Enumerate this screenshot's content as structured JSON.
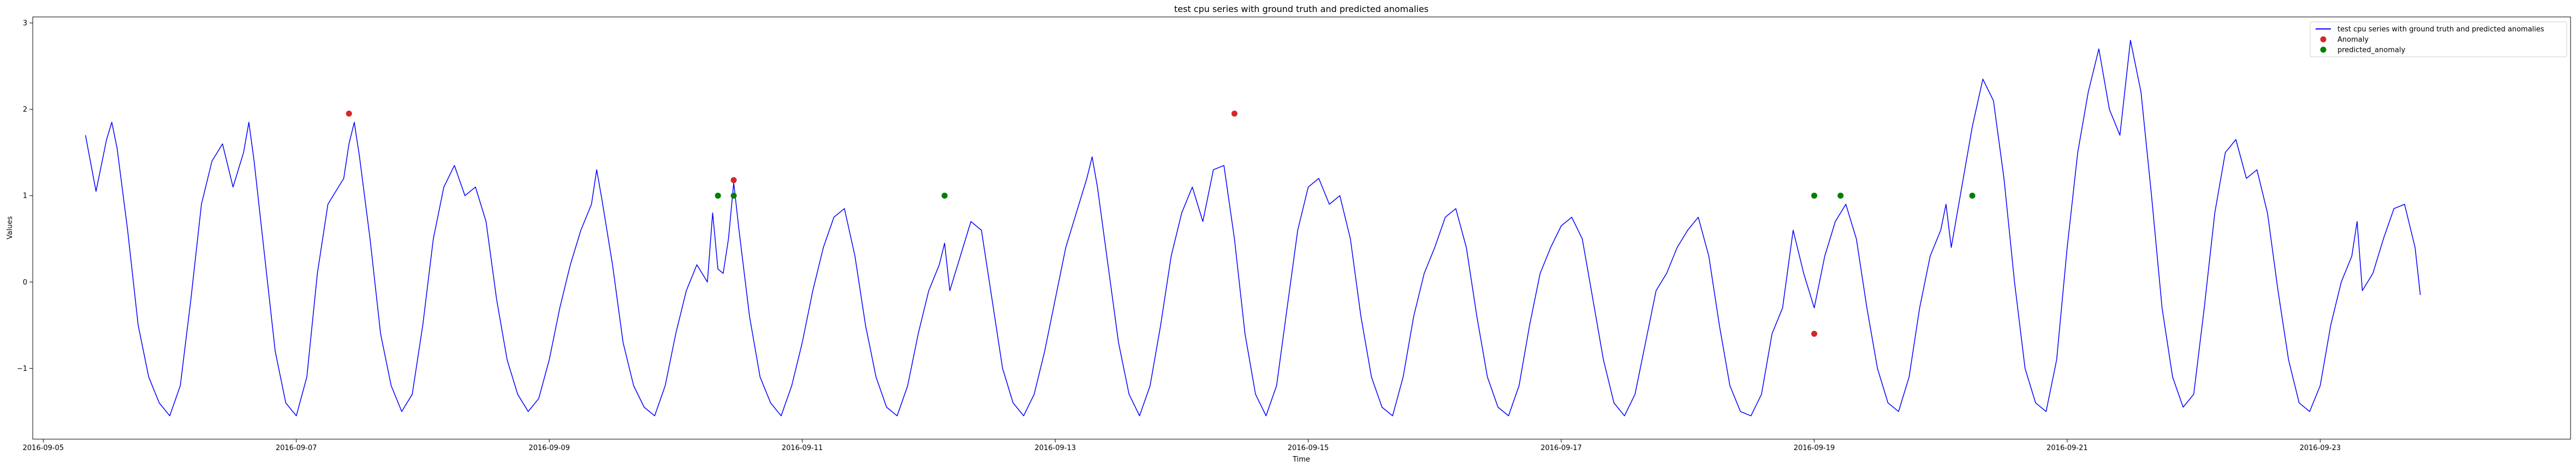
{
  "chart_data": {
    "type": "line",
    "title": "test cpu series with ground truth and predicted anomalies",
    "xlabel": "Time",
    "ylabel": "Values",
    "x_type": "date",
    "xlim": [
      "2016-09-04T22:00",
      "2016-09-24T23:30"
    ],
    "ylim": [
      -1.82,
      3.07
    ],
    "x_ticks": [
      "2016-09-05",
      "2016-09-07",
      "2016-09-09",
      "2016-09-11",
      "2016-09-13",
      "2016-09-15",
      "2016-09-17",
      "2016-09-19",
      "2016-09-21",
      "2016-09-23"
    ],
    "y_ticks": [
      -1,
      0,
      1,
      2,
      3
    ],
    "y_tick_labels": [
      "−1",
      "0",
      "1",
      "2",
      "3"
    ],
    "grid": false,
    "legend_position": "top-right",
    "colors": {
      "series": "#0000ff",
      "anomaly": "#d62728",
      "predicted": "#008000"
    },
    "series": [
      {
        "name": "test cpu series with ground truth and predicted anomalies",
        "marker": "line",
        "color": "#0000ff",
        "points": [
          [
            "2016-09-05T08:00",
            1.7
          ],
          [
            "2016-09-05T10:00",
            1.05
          ],
          [
            "2016-09-05T12:00",
            1.65
          ],
          [
            "2016-09-05T13:00",
            1.85
          ],
          [
            "2016-09-05T14:00",
            1.55
          ],
          [
            "2016-09-05T16:00",
            0.6
          ],
          [
            "2016-09-05T18:00",
            -0.5
          ],
          [
            "2016-09-05T20:00",
            -1.1
          ],
          [
            "2016-09-05T22:00",
            -1.4
          ],
          [
            "2016-09-06T00:00",
            -1.55
          ],
          [
            "2016-09-06T02:00",
            -1.2
          ],
          [
            "2016-09-06T04:00",
            -0.2
          ],
          [
            "2016-09-06T06:00",
            0.9
          ],
          [
            "2016-09-06T08:00",
            1.4
          ],
          [
            "2016-09-06T10:00",
            1.6
          ],
          [
            "2016-09-06T12:00",
            1.1
          ],
          [
            "2016-09-06T14:00",
            1.5
          ],
          [
            "2016-09-06T15:00",
            1.85
          ],
          [
            "2016-09-06T16:00",
            1.4
          ],
          [
            "2016-09-06T18:00",
            0.3
          ],
          [
            "2016-09-06T20:00",
            -0.8
          ],
          [
            "2016-09-06T22:00",
            -1.4
          ],
          [
            "2016-09-07T00:00",
            -1.55
          ],
          [
            "2016-09-07T02:00",
            -1.1
          ],
          [
            "2016-09-07T04:00",
            0.1
          ],
          [
            "2016-09-07T06:00",
            0.9
          ],
          [
            "2016-09-07T08:00",
            1.1
          ],
          [
            "2016-09-07T09:00",
            1.2
          ],
          [
            "2016-09-07T10:00",
            1.6
          ],
          [
            "2016-09-07T11:00",
            1.85
          ],
          [
            "2016-09-07T12:00",
            1.45
          ],
          [
            "2016-09-07T14:00",
            0.5
          ],
          [
            "2016-09-07T16:00",
            -0.6
          ],
          [
            "2016-09-07T18:00",
            -1.2
          ],
          [
            "2016-09-07T20:00",
            -1.5
          ],
          [
            "2016-09-07T22:00",
            -1.3
          ],
          [
            "2016-09-08T00:00",
            -0.5
          ],
          [
            "2016-09-08T02:00",
            0.5
          ],
          [
            "2016-09-08T04:00",
            1.1
          ],
          [
            "2016-09-08T06:00",
            1.35
          ],
          [
            "2016-09-08T08:00",
            1.0
          ],
          [
            "2016-09-08T10:00",
            1.1
          ],
          [
            "2016-09-08T12:00",
            0.7
          ],
          [
            "2016-09-08T14:00",
            -0.2
          ],
          [
            "2016-09-08T16:00",
            -0.9
          ],
          [
            "2016-09-08T18:00",
            -1.3
          ],
          [
            "2016-09-08T20:00",
            -1.5
          ],
          [
            "2016-09-08T22:00",
            -1.35
          ],
          [
            "2016-09-09T00:00",
            -0.9
          ],
          [
            "2016-09-09T02:00",
            -0.3
          ],
          [
            "2016-09-09T04:00",
            0.2
          ],
          [
            "2016-09-09T06:00",
            0.6
          ],
          [
            "2016-09-09T08:00",
            0.9
          ],
          [
            "2016-09-09T09:00",
            1.3
          ],
          [
            "2016-09-09T10:00",
            0.95
          ],
          [
            "2016-09-09T12:00",
            0.2
          ],
          [
            "2016-09-09T14:00",
            -0.7
          ],
          [
            "2016-09-09T16:00",
            -1.2
          ],
          [
            "2016-09-09T18:00",
            -1.45
          ],
          [
            "2016-09-09T20:00",
            -1.55
          ],
          [
            "2016-09-09T22:00",
            -1.2
          ],
          [
            "2016-09-10T00:00",
            -0.6
          ],
          [
            "2016-09-10T02:00",
            -0.1
          ],
          [
            "2016-09-10T04:00",
            0.2
          ],
          [
            "2016-09-10T06:00",
            0.0
          ],
          [
            "2016-09-10T07:00",
            0.8
          ],
          [
            "2016-09-10T08:00",
            0.15
          ],
          [
            "2016-09-10T09:00",
            0.1
          ],
          [
            "2016-09-10T10:00",
            0.5
          ],
          [
            "2016-09-10T11:00",
            1.15
          ],
          [
            "2016-09-10T12:00",
            0.6
          ],
          [
            "2016-09-10T14:00",
            -0.4
          ],
          [
            "2016-09-10T16:00",
            -1.1
          ],
          [
            "2016-09-10T18:00",
            -1.4
          ],
          [
            "2016-09-10T20:00",
            -1.55
          ],
          [
            "2016-09-10T22:00",
            -1.2
          ],
          [
            "2016-09-11T00:00",
            -0.7
          ],
          [
            "2016-09-11T02:00",
            -0.1
          ],
          [
            "2016-09-11T04:00",
            0.4
          ],
          [
            "2016-09-11T06:00",
            0.75
          ],
          [
            "2016-09-11T08:00",
            0.85
          ],
          [
            "2016-09-11T10:00",
            0.3
          ],
          [
            "2016-09-11T12:00",
            -0.5
          ],
          [
            "2016-09-11T14:00",
            -1.1
          ],
          [
            "2016-09-11T16:00",
            -1.45
          ],
          [
            "2016-09-11T18:00",
            -1.55
          ],
          [
            "2016-09-11T20:00",
            -1.2
          ],
          [
            "2016-09-11T22:00",
            -0.6
          ],
          [
            "2016-09-12T00:00",
            -0.1
          ],
          [
            "2016-09-12T02:00",
            0.2
          ],
          [
            "2016-09-12T03:00",
            0.45
          ],
          [
            "2016-09-12T04:00",
            -0.1
          ],
          [
            "2016-09-12T06:00",
            0.3
          ],
          [
            "2016-09-12T08:00",
            0.7
          ],
          [
            "2016-09-12T10:00",
            0.6
          ],
          [
            "2016-09-12T12:00",
            -0.2
          ],
          [
            "2016-09-12T14:00",
            -1.0
          ],
          [
            "2016-09-12T16:00",
            -1.4
          ],
          [
            "2016-09-12T18:00",
            -1.55
          ],
          [
            "2016-09-12T20:00",
            -1.3
          ],
          [
            "2016-09-12T22:00",
            -0.8
          ],
          [
            "2016-09-13T00:00",
            -0.2
          ],
          [
            "2016-09-13T02:00",
            0.4
          ],
          [
            "2016-09-13T04:00",
            0.8
          ],
          [
            "2016-09-13T06:00",
            1.2
          ],
          [
            "2016-09-13T07:00",
            1.45
          ],
          [
            "2016-09-13T08:00",
            1.1
          ],
          [
            "2016-09-13T10:00",
            0.2
          ],
          [
            "2016-09-13T12:00",
            -0.7
          ],
          [
            "2016-09-13T14:00",
            -1.3
          ],
          [
            "2016-09-13T16:00",
            -1.55
          ],
          [
            "2016-09-13T18:00",
            -1.2
          ],
          [
            "2016-09-13T20:00",
            -0.5
          ],
          [
            "2016-09-13T22:00",
            0.3
          ],
          [
            "2016-09-14T00:00",
            0.8
          ],
          [
            "2016-09-14T02:00",
            1.1
          ],
          [
            "2016-09-14T04:00",
            0.7
          ],
          [
            "2016-09-14T06:00",
            1.3
          ],
          [
            "2016-09-14T08:00",
            1.35
          ],
          [
            "2016-09-14T10:00",
            0.5
          ],
          [
            "2016-09-14T12:00",
            -0.6
          ],
          [
            "2016-09-14T14:00",
            -1.3
          ],
          [
            "2016-09-14T16:00",
            -1.55
          ],
          [
            "2016-09-14T18:00",
            -1.2
          ],
          [
            "2016-09-14T20:00",
            -0.3
          ],
          [
            "2016-09-14T22:00",
            0.6
          ],
          [
            "2016-09-15T00:00",
            1.1
          ],
          [
            "2016-09-15T02:00",
            1.2
          ],
          [
            "2016-09-15T04:00",
            0.9
          ],
          [
            "2016-09-15T06:00",
            1.0
          ],
          [
            "2016-09-15T08:00",
            0.5
          ],
          [
            "2016-09-15T10:00",
            -0.4
          ],
          [
            "2016-09-15T12:00",
            -1.1
          ],
          [
            "2016-09-15T14:00",
            -1.45
          ],
          [
            "2016-09-15T16:00",
            -1.55
          ],
          [
            "2016-09-15T18:00",
            -1.1
          ],
          [
            "2016-09-15T20:00",
            -0.4
          ],
          [
            "2016-09-15T22:00",
            0.1
          ],
          [
            "2016-09-16T00:00",
            0.4
          ],
          [
            "2016-09-16T02:00",
            0.75
          ],
          [
            "2016-09-16T04:00",
            0.85
          ],
          [
            "2016-09-16T06:00",
            0.4
          ],
          [
            "2016-09-16T08:00",
            -0.4
          ],
          [
            "2016-09-16T10:00",
            -1.1
          ],
          [
            "2016-09-16T12:00",
            -1.45
          ],
          [
            "2016-09-16T14:00",
            -1.55
          ],
          [
            "2016-09-16T16:00",
            -1.2
          ],
          [
            "2016-09-16T18:00",
            -0.5
          ],
          [
            "2016-09-16T20:00",
            0.1
          ],
          [
            "2016-09-16T22:00",
            0.4
          ],
          [
            "2016-09-17T00:00",
            0.65
          ],
          [
            "2016-09-17T02:00",
            0.75
          ],
          [
            "2016-09-17T04:00",
            0.5
          ],
          [
            "2016-09-17T06:00",
            -0.2
          ],
          [
            "2016-09-17T08:00",
            -0.9
          ],
          [
            "2016-09-17T10:00",
            -1.4
          ],
          [
            "2016-09-17T12:00",
            -1.55
          ],
          [
            "2016-09-17T14:00",
            -1.3
          ],
          [
            "2016-09-17T16:00",
            -0.7
          ],
          [
            "2016-09-17T18:00",
            -0.1
          ],
          [
            "2016-09-17T20:00",
            0.1
          ],
          [
            "2016-09-17T22:00",
            0.4
          ],
          [
            "2016-09-18T00:00",
            0.6
          ],
          [
            "2016-09-18T02:00",
            0.75
          ],
          [
            "2016-09-18T04:00",
            0.3
          ],
          [
            "2016-09-18T06:00",
            -0.5
          ],
          [
            "2016-09-18T08:00",
            -1.2
          ],
          [
            "2016-09-18T10:00",
            -1.5
          ],
          [
            "2016-09-18T12:00",
            -1.55
          ],
          [
            "2016-09-18T14:00",
            -1.3
          ],
          [
            "2016-09-18T16:00",
            -0.6
          ],
          [
            "2016-09-18T18:00",
            -0.3
          ],
          [
            "2016-09-18T20:00",
            0.6
          ],
          [
            "2016-09-18T22:00",
            0.1
          ],
          [
            "2016-09-19T00:00",
            -0.3
          ],
          [
            "2016-09-19T02:00",
            0.3
          ],
          [
            "2016-09-19T04:00",
            0.7
          ],
          [
            "2016-09-19T06:00",
            0.9
          ],
          [
            "2016-09-19T08:00",
            0.5
          ],
          [
            "2016-09-19T10:00",
            -0.3
          ],
          [
            "2016-09-19T12:00",
            -1.0
          ],
          [
            "2016-09-19T14:00",
            -1.4
          ],
          [
            "2016-09-19T16:00",
            -1.5
          ],
          [
            "2016-09-19T18:00",
            -1.1
          ],
          [
            "2016-09-19T20:00",
            -0.3
          ],
          [
            "2016-09-19T22:00",
            0.3
          ],
          [
            "2016-09-20T00:00",
            0.6
          ],
          [
            "2016-09-20T01:00",
            0.9
          ],
          [
            "2016-09-20T02:00",
            0.4
          ],
          [
            "2016-09-20T04:00",
            1.1
          ],
          [
            "2016-09-20T06:00",
            1.8
          ],
          [
            "2016-09-20T08:00",
            2.35
          ],
          [
            "2016-09-20T10:00",
            2.1
          ],
          [
            "2016-09-20T12:00",
            1.2
          ],
          [
            "2016-09-20T14:00",
            0.0
          ],
          [
            "2016-09-20T16:00",
            -1.0
          ],
          [
            "2016-09-20T18:00",
            -1.4
          ],
          [
            "2016-09-20T20:00",
            -1.5
          ],
          [
            "2016-09-20T22:00",
            -0.9
          ],
          [
            "2016-09-21T00:00",
            0.4
          ],
          [
            "2016-09-21T02:00",
            1.5
          ],
          [
            "2016-09-21T04:00",
            2.2
          ],
          [
            "2016-09-21T06:00",
            2.7
          ],
          [
            "2016-09-21T08:00",
            2.0
          ],
          [
            "2016-09-21T10:00",
            1.7
          ],
          [
            "2016-09-21T12:00",
            2.8
          ],
          [
            "2016-09-21T14:00",
            2.2
          ],
          [
            "2016-09-21T16:00",
            1.0
          ],
          [
            "2016-09-21T18:00",
            -0.3
          ],
          [
            "2016-09-21T20:00",
            -1.1
          ],
          [
            "2016-09-21T22:00",
            -1.45
          ],
          [
            "2016-09-22T00:00",
            -1.3
          ],
          [
            "2016-09-22T02:00",
            -0.3
          ],
          [
            "2016-09-22T04:00",
            0.8
          ],
          [
            "2016-09-22T06:00",
            1.5
          ],
          [
            "2016-09-22T08:00",
            1.65
          ],
          [
            "2016-09-22T10:00",
            1.2
          ],
          [
            "2016-09-22T12:00",
            1.3
          ],
          [
            "2016-09-22T14:00",
            0.8
          ],
          [
            "2016-09-22T16:00",
            -0.1
          ],
          [
            "2016-09-22T18:00",
            -0.9
          ],
          [
            "2016-09-22T20:00",
            -1.4
          ],
          [
            "2016-09-22T22:00",
            -1.5
          ],
          [
            "2016-09-23T00:00",
            -1.2
          ],
          [
            "2016-09-23T02:00",
            -0.5
          ],
          [
            "2016-09-23T04:00",
            0.0
          ],
          [
            "2016-09-23T06:00",
            0.3
          ],
          [
            "2016-09-23T07:00",
            0.7
          ],
          [
            "2016-09-23T08:00",
            -0.1
          ],
          [
            "2016-09-23T10:00",
            0.1
          ],
          [
            "2016-09-23T12:00",
            0.5
          ],
          [
            "2016-09-23T14:00",
            0.85
          ],
          [
            "2016-09-23T16:00",
            0.9
          ],
          [
            "2016-09-23T18:00",
            0.4
          ],
          [
            "2016-09-23T19:00",
            -0.15
          ]
        ]
      },
      {
        "name": "Anomaly",
        "marker": "circle",
        "color": "#d62728",
        "points": [
          [
            "2016-09-07T10:00",
            1.95
          ],
          [
            "2016-09-10T11:00",
            1.18
          ],
          [
            "2016-09-14T10:00",
            1.95
          ],
          [
            "2016-09-19T00:00",
            -0.6
          ]
        ]
      },
      {
        "name": "predicted_anomaly",
        "marker": "circle",
        "color": "#008000",
        "points": [
          [
            "2016-09-10T08:00",
            1.0
          ],
          [
            "2016-09-10T11:00",
            1.0
          ],
          [
            "2016-09-12T03:00",
            1.0
          ],
          [
            "2016-09-19T00:00",
            1.0
          ],
          [
            "2016-09-19T05:00",
            1.0
          ],
          [
            "2016-09-20T06:00",
            1.0
          ]
        ]
      }
    ]
  }
}
